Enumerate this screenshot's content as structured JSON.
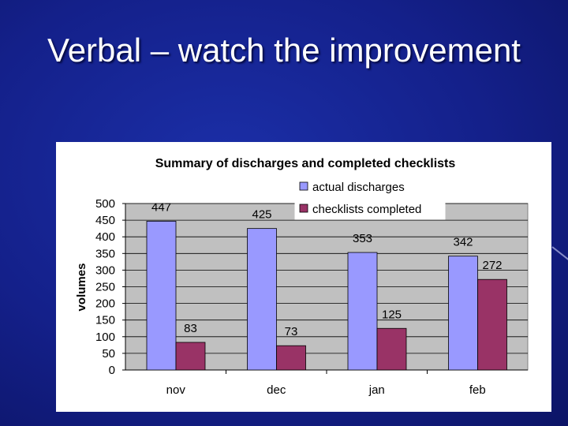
{
  "slide": {
    "title": "Verbal – watch the improvement"
  },
  "chart_data": {
    "type": "bar",
    "title": "Summary of discharges and completed checklists",
    "xlabel": "",
    "ylabel": "volumes",
    "ylim": [
      0,
      500
    ],
    "yticks": [
      0,
      50,
      100,
      150,
      200,
      250,
      300,
      350,
      400,
      450,
      500
    ],
    "categories": [
      "nov",
      "dec",
      "jan",
      "feb"
    ],
    "series": [
      {
        "name": "actual discharges",
        "values": [
          447,
          425,
          353,
          342
        ],
        "color": "#9999ff"
      },
      {
        "name": "checklists completed",
        "values": [
          83,
          73,
          125,
          272
        ],
        "color": "#993366"
      }
    ],
    "grid": true,
    "legend": "top-right",
    "plot_background": "#c0c0c0"
  }
}
